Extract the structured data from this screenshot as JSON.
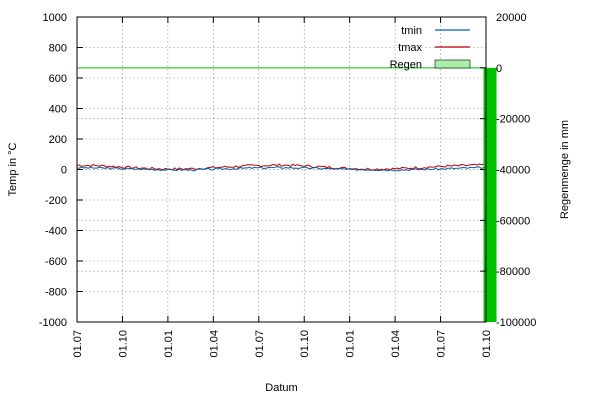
{
  "chart_data": {
    "type": "line",
    "xlabel": "Datum",
    "ylabel": "Temp in °C",
    "y2label": "Regenmenge in mm",
    "x_ticks": [
      "01.07",
      "01.10",
      "01.01",
      "01.04",
      "01.07",
      "01.10",
      "01.01",
      "01.04",
      "01.07",
      "01.10"
    ],
    "ylim": [
      -1000,
      1000
    ],
    "y_ticks": [
      "1000",
      "800",
      "600",
      "400",
      "200",
      "0",
      "-200",
      "-400",
      "-600",
      "-800",
      "-1000"
    ],
    "y2lim": [
      -100000,
      20000
    ],
    "y2_ticks": [
      "20000",
      "0",
      "-20000",
      "-40000",
      "-60000",
      "-80000",
      "-100000"
    ],
    "grid": true,
    "legend_position": "top-right",
    "series": [
      {
        "name": "tmin",
        "axis": "left",
        "color": "#0060ad",
        "x": [
          0,
          0.5,
          1,
          1.5,
          2,
          2.5,
          3,
          3.5,
          4,
          4.5,
          5,
          5.5,
          6,
          6.5,
          7,
          7.5,
          8,
          8.5,
          9
        ],
        "values": [
          12,
          10,
          6,
          2,
          -2,
          -3,
          2,
          7,
          11,
          13,
          10,
          6,
          1,
          -1,
          -3,
          0,
          4,
          9,
          13
        ]
      },
      {
        "name": "tmax",
        "axis": "left",
        "color": "#c00000",
        "x": [
          0,
          0.5,
          1,
          1.5,
          2,
          2.5,
          3,
          3.5,
          4,
          4.5,
          5,
          5.5,
          6,
          6.5,
          7,
          7.5,
          8,
          8.5,
          9
        ],
        "values": [
          28,
          25,
          16,
          8,
          3,
          5,
          12,
          20,
          26,
          29,
          24,
          15,
          7,
          3,
          5,
          12,
          20,
          26,
          30
        ]
      },
      {
        "name": "Regen",
        "axis": "right",
        "type": "line-and-bar",
        "color": "#00c000",
        "line_x": [
          0,
          9
        ],
        "line_values": [
          0,
          0
        ],
        "bar": {
          "x": 9.1,
          "value": -100000
        }
      }
    ]
  }
}
